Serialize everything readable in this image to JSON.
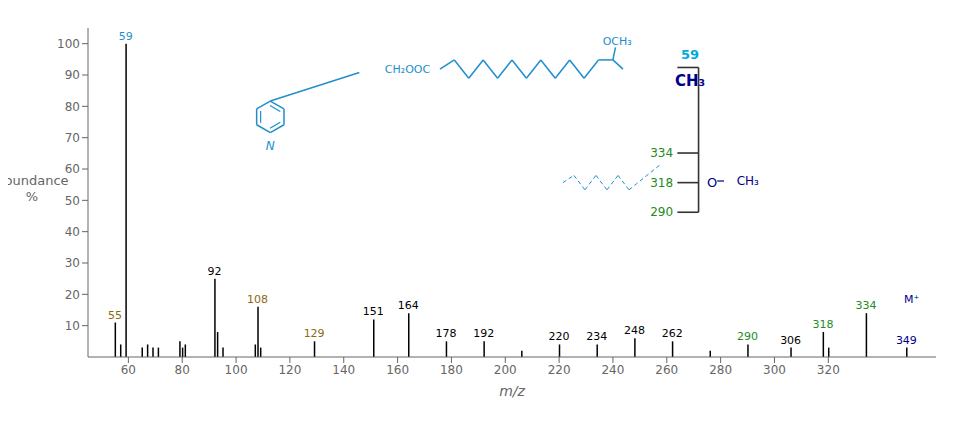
{
  "chart_data": {
    "type": "bar",
    "xlabel": "m/z",
    "ylabel": "Abundance\n%",
    "x": [
      55,
      57,
      59,
      65,
      67,
      69,
      71,
      79,
      80,
      81,
      92,
      93,
      95,
      107,
      108,
      109,
      129,
      151,
      164,
      178,
      192,
      206,
      220,
      234,
      248,
      262,
      276,
      290,
      306,
      318,
      320,
      334,
      349
    ],
    "values": [
      11,
      4,
      100,
      3,
      4,
      3,
      3,
      5,
      3,
      4,
      25,
      8,
      3,
      4,
      16,
      3,
      5,
      12,
      14,
      5,
      5,
      2,
      4,
      4,
      6,
      5,
      2,
      4,
      3,
      8,
      3,
      14,
      3
    ],
    "color": "#000000",
    "xlim": [
      45,
      360
    ],
    "ylim": [
      0,
      105
    ],
    "xticks": [
      60,
      80,
      100,
      120,
      140,
      160,
      180,
      200,
      220,
      240,
      260,
      280,
      300,
      320
    ],
    "yticks": [
      10,
      20,
      30,
      40,
      50,
      60,
      70,
      80,
      90,
      100
    ],
    "grid": false,
    "annotations": [
      {
        "text": "55",
        "x": 55,
        "y": 11,
        "color": "#8B6914"
      },
      {
        "text": "59",
        "x": 59,
        "y": 100,
        "color": "#1E8FCC"
      },
      {
        "text": "92",
        "x": 92,
        "y": 25,
        "color": "black"
      },
      {
        "text": "108",
        "x": 108,
        "y": 16,
        "color": "#8B6914"
      },
      {
        "text": "129",
        "x": 129,
        "y": 5,
        "color": "#8B6914"
      },
      {
        "text": "151",
        "x": 151,
        "y": 12,
        "color": "black"
      },
      {
        "text": "164",
        "x": 164,
        "y": 14,
        "color": "black"
      },
      {
        "text": "178",
        "x": 178,
        "y": 5,
        "color": "black"
      },
      {
        "text": "192",
        "x": 192,
        "y": 5,
        "color": "black"
      },
      {
        "text": "220",
        "x": 220,
        "y": 4,
        "color": "black"
      },
      {
        "text": "234",
        "x": 234,
        "y": 4,
        "color": "black"
      },
      {
        "text": "248",
        "x": 248,
        "y": 6,
        "color": "black"
      },
      {
        "text": "262",
        "x": 262,
        "y": 5,
        "color": "black"
      },
      {
        "text": "290",
        "x": 290,
        "y": 4,
        "color": "#228B22"
      },
      {
        "text": "306",
        "x": 306,
        "y": 3,
        "color": "black"
      },
      {
        "text": "318",
        "x": 318,
        "y": 8,
        "color": "#228B22"
      },
      {
        "text": "334",
        "x": 334,
        "y": 14,
        "color": "#228B22"
      },
      {
        "text": "349",
        "x": 349,
        "y": 3,
        "color": "#00008B"
      },
      {
        "text": "M⁺",
        "x": 351,
        "y": 16,
        "color": "#00008B"
      }
    ],
    "structure_labels": [
      {
        "text": "N",
        "color": "#1E8FCC"
      },
      {
        "text": "CH₂OOC",
        "color": "#1E8FCC"
      },
      {
        "text": "OCH₃",
        "color": "#1E8FCC"
      },
      {
        "text": "334",
        "color": "#228B22"
      },
      {
        "text": "318",
        "color": "#228B22"
      },
      {
        "text": "290",
        "color": "#228B22"
      },
      {
        "text": "59",
        "color": "#00AADD"
      },
      {
        "text": "CH₃",
        "color": "#00008B"
      },
      {
        "text": "O",
        "color": "#00008B"
      },
      {
        "text": "CH₃",
        "color": "#00008B"
      }
    ]
  }
}
